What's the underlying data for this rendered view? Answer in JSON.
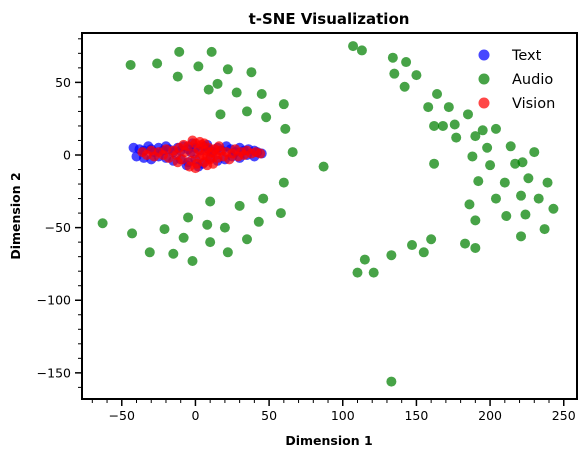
{
  "chart_data": {
    "type": "scatter",
    "title": "t-SNE Visualization",
    "xlabel": "Dimension 1",
    "ylabel": "Dimension 2",
    "xlim": [
      -77,
      259
    ],
    "ylim": [
      -168,
      84
    ],
    "xticks": [
      -50,
      0,
      50,
      100,
      150,
      200,
      250
    ],
    "yticks": [
      50,
      0,
      -50,
      -100,
      -150
    ],
    "xtick_labels": [
      "−50",
      "0",
      "50",
      "100",
      "150",
      "200",
      "250"
    ],
    "ytick_labels": [
      "50",
      "0",
      "−50",
      "−100",
      "−150"
    ],
    "grid": false,
    "legend_position": "top-right",
    "series": [
      {
        "name": "Text",
        "color": "#0000ff",
        "points": [
          [
            -42,
            5
          ],
          [
            -38,
            4
          ],
          [
            -35,
            3
          ],
          [
            -32,
            6
          ],
          [
            -30,
            4
          ],
          [
            -28,
            2
          ],
          [
            -25,
            5
          ],
          [
            -22,
            3
          ],
          [
            -20,
            6
          ],
          [
            -18,
            4
          ],
          [
            -15,
            2
          ],
          [
            -12,
            5
          ],
          [
            -10,
            3
          ],
          [
            -8,
            6
          ],
          [
            -5,
            4
          ],
          [
            -3,
            2
          ],
          [
            0,
            5
          ],
          [
            3,
            3
          ],
          [
            6,
            6
          ],
          [
            9,
            4
          ],
          [
            12,
            2
          ],
          [
            15,
            5
          ],
          [
            18,
            3
          ],
          [
            21,
            6
          ],
          [
            24,
            4
          ],
          [
            27,
            2
          ],
          [
            30,
            5
          ],
          [
            33,
            3
          ],
          [
            36,
            4
          ],
          [
            40,
            3
          ],
          [
            42,
            2
          ],
          [
            45,
            1
          ],
          [
            -40,
            -1
          ],
          [
            -35,
            -2
          ],
          [
            -30,
            -3
          ],
          [
            -25,
            -1
          ],
          [
            -20,
            -2
          ],
          [
            -15,
            -4
          ],
          [
            -10,
            -3
          ],
          [
            -5,
            -5
          ],
          [
            0,
            -3
          ],
          [
            5,
            -6
          ],
          [
            10,
            -2
          ],
          [
            15,
            -4
          ],
          [
            20,
            -3
          ],
          [
            25,
            -1
          ],
          [
            30,
            -2
          ],
          [
            35,
            0
          ],
          [
            40,
            -1
          ],
          [
            -2,
            8
          ],
          [
            2,
            -8
          ],
          [
            -6,
            -7
          ],
          [
            8,
            7
          ]
        ]
      },
      {
        "name": "Audio",
        "color": "#008000",
        "points": [
          [
            -44,
            62
          ],
          [
            -26,
            63
          ],
          [
            -11,
            71
          ],
          [
            11,
            71
          ],
          [
            2,
            61
          ],
          [
            -12,
            54
          ],
          [
            22,
            59
          ],
          [
            38,
            57
          ],
          [
            15,
            49
          ],
          [
            9,
            45
          ],
          [
            28,
            43
          ],
          [
            45,
            42
          ],
          [
            17,
            28
          ],
          [
            35,
            30
          ],
          [
            48,
            26
          ],
          [
            60,
            35
          ],
          [
            61,
            18
          ],
          [
            66,
            2
          ],
          [
            87,
            -8
          ],
          [
            60,
            -19
          ],
          [
            58,
            -40
          ],
          [
            46,
            -30
          ],
          [
            43,
            -46
          ],
          [
            30,
            -35
          ],
          [
            35,
            -58
          ],
          [
            20,
            -50
          ],
          [
            10,
            -32
          ],
          [
            8,
            -48
          ],
          [
            -5,
            -43
          ],
          [
            -8,
            -57
          ],
          [
            10,
            -60
          ],
          [
            22,
            -67
          ],
          [
            -2,
            -73
          ],
          [
            -15,
            -68
          ],
          [
            -31,
            -67
          ],
          [
            -21,
            -51
          ],
          [
            -43,
            -54
          ],
          [
            -63,
            -47
          ],
          [
            107,
            75
          ],
          [
            113,
            72
          ],
          [
            134,
            67
          ],
          [
            135,
            56
          ],
          [
            143,
            64
          ],
          [
            150,
            55
          ],
          [
            142,
            47
          ],
          [
            158,
            33
          ],
          [
            164,
            42
          ],
          [
            172,
            33
          ],
          [
            168,
            20
          ],
          [
            162,
            20
          ],
          [
            176,
            21
          ],
          [
            185,
            28
          ],
          [
            177,
            12
          ],
          [
            162,
            -6
          ],
          [
            188,
            -1
          ],
          [
            190,
            13
          ],
          [
            195,
            17
          ],
          [
            198,
            5
          ],
          [
            200,
            -7
          ],
          [
            204,
            18
          ],
          [
            210,
            -19
          ],
          [
            214,
            6
          ],
          [
            217,
            -6
          ],
          [
            222,
            -5
          ],
          [
            230,
            2
          ],
          [
            226,
            -16
          ],
          [
            221,
            -28
          ],
          [
            239,
            -19
          ],
          [
            211,
            -42
          ],
          [
            221,
            -56
          ],
          [
            224,
            -41
          ],
          [
            233,
            -30
          ],
          [
            237,
            -51
          ],
          [
            243,
            -37
          ],
          [
            192,
            -18
          ],
          [
            186,
            -34
          ],
          [
            204,
            -30
          ],
          [
            190,
            -45
          ],
          [
            183,
            -61
          ],
          [
            190,
            -64
          ],
          [
            160,
            -58
          ],
          [
            147,
            -62
          ],
          [
            155,
            -67
          ],
          [
            133,
            -69
          ],
          [
            115,
            -72
          ],
          [
            110,
            -81
          ],
          [
            121,
            -81
          ],
          [
            133,
            -156
          ]
        ]
      },
      {
        "name": "Vision",
        "color": "#ff0000",
        "points": [
          [
            -36,
            2
          ],
          [
            -33,
            0
          ],
          [
            -30,
            3
          ],
          [
            -28,
            -1
          ],
          [
            -25,
            2
          ],
          [
            -22,
            0
          ],
          [
            -20,
            4
          ],
          [
            -18,
            -2
          ],
          [
            -15,
            3
          ],
          [
            -13,
            0
          ],
          [
            -11,
            5
          ],
          [
            -9,
            -3
          ],
          [
            -7,
            2
          ],
          [
            -5,
            6
          ],
          [
            -3,
            -4
          ],
          [
            -1,
            1
          ],
          [
            0,
            8
          ],
          [
            1,
            -6
          ],
          [
            2,
            4
          ],
          [
            3,
            -2
          ],
          [
            4,
            7
          ],
          [
            5,
            0
          ],
          [
            6,
            -5
          ],
          [
            7,
            3
          ],
          [
            8,
            -1
          ],
          [
            9,
            5
          ],
          [
            10,
            -3
          ],
          [
            11,
            2
          ],
          [
            12,
            -6
          ],
          [
            13,
            4
          ],
          [
            14,
            0
          ],
          [
            15,
            -2
          ],
          [
            17,
            3
          ],
          [
            19,
            -1
          ],
          [
            21,
            2
          ],
          [
            23,
            -3
          ],
          [
            25,
            1
          ],
          [
            27,
            4
          ],
          [
            29,
            -1
          ],
          [
            31,
            2
          ],
          [
            33,
            0
          ],
          [
            35,
            3
          ],
          [
            38,
            1
          ],
          [
            41,
            2
          ],
          [
            44,
            1
          ],
          [
            -2,
            10
          ],
          [
            0,
            -9
          ],
          [
            3,
            9
          ],
          [
            -4,
            -8
          ],
          [
            6,
            8
          ],
          [
            8,
            -7
          ],
          [
            -8,
            7
          ],
          [
            -12,
            -5
          ],
          [
            16,
            6
          ]
        ]
      }
    ]
  }
}
